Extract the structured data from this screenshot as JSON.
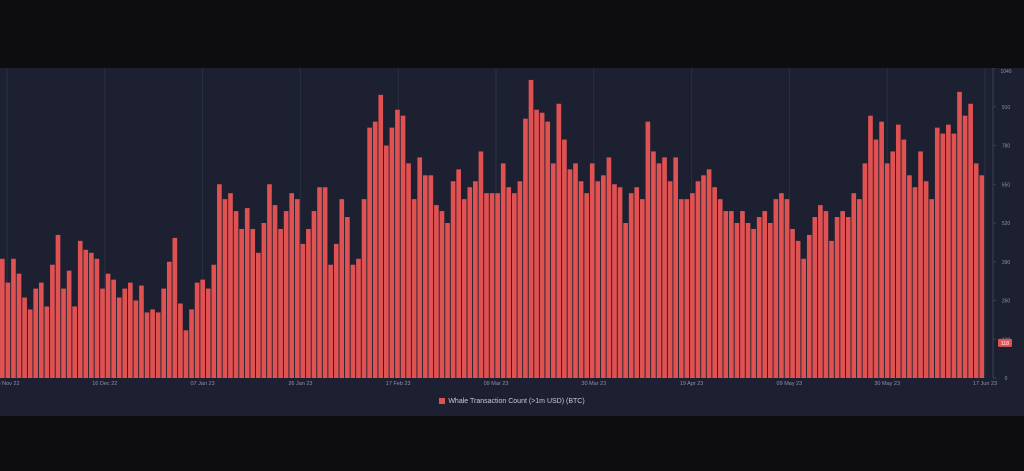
{
  "chart_data": {
    "type": "bar",
    "title": "",
    "xlabel": "",
    "ylabel": "",
    "ylim": [
      0,
      1040
    ],
    "grid": true,
    "legend_position": "bottom-center",
    "yticks": [
      0,
      130,
      260,
      390,
      520,
      650,
      780,
      910,
      1040
    ],
    "xtick_labels": [
      "28 Nov 22",
      "16 Dec 22",
      "07 Jan 23",
      "26 Jan 23",
      "17 Feb 23",
      "09 Mar 23",
      "30 Mar 23",
      "19 Apr 23",
      "09 May 23",
      "30 May 23",
      "17 Jun 23"
    ],
    "x_start": "2022-11-28",
    "x_end": "2023-06-17",
    "current_value_label": "118",
    "series": [
      {
        "name": "Whale Transaction Count (>1m USD) (BTC)",
        "color": "#e05252",
        "values": [
          400,
          320,
          400,
          350,
          270,
          230,
          300,
          320,
          240,
          380,
          480,
          300,
          360,
          240,
          460,
          430,
          420,
          400,
          300,
          350,
          330,
          270,
          300,
          320,
          260,
          310,
          220,
          230,
          220,
          300,
          390,
          470,
          250,
          160,
          230,
          320,
          330,
          300,
          380,
          650,
          600,
          620,
          560,
          500,
          570,
          500,
          420,
          520,
          650,
          580,
          500,
          560,
          620,
          600,
          450,
          500,
          560,
          640,
          640,
          380,
          450,
          600,
          540,
          380,
          400,
          600,
          840,
          860,
          950,
          780,
          840,
          900,
          880,
          720,
          600,
          740,
          680,
          680,
          580,
          560,
          520,
          660,
          700,
          600,
          640,
          660,
          760,
          620,
          620,
          620,
          720,
          640,
          620,
          660,
          870,
          1000,
          900,
          890,
          860,
          720,
          920,
          800,
          700,
          720,
          660,
          620,
          720,
          660,
          680,
          740,
          650,
          640,
          520,
          620,
          640,
          600,
          860,
          760,
          720,
          740,
          660,
          740,
          600,
          600,
          620,
          660,
          680,
          700,
          640,
          600,
          560,
          560,
          520,
          560,
          520,
          500,
          540,
          560,
          520,
          600,
          620,
          600,
          500,
          460,
          400,
          480,
          540,
          580,
          560,
          460,
          540,
          560,
          540,
          620,
          600,
          720,
          880,
          800,
          860,
          720,
          760,
          850,
          800,
          680,
          640,
          760,
          660,
          600,
          840,
          820,
          850,
          820,
          960,
          880,
          920,
          720,
          680
        ]
      }
    ]
  }
}
